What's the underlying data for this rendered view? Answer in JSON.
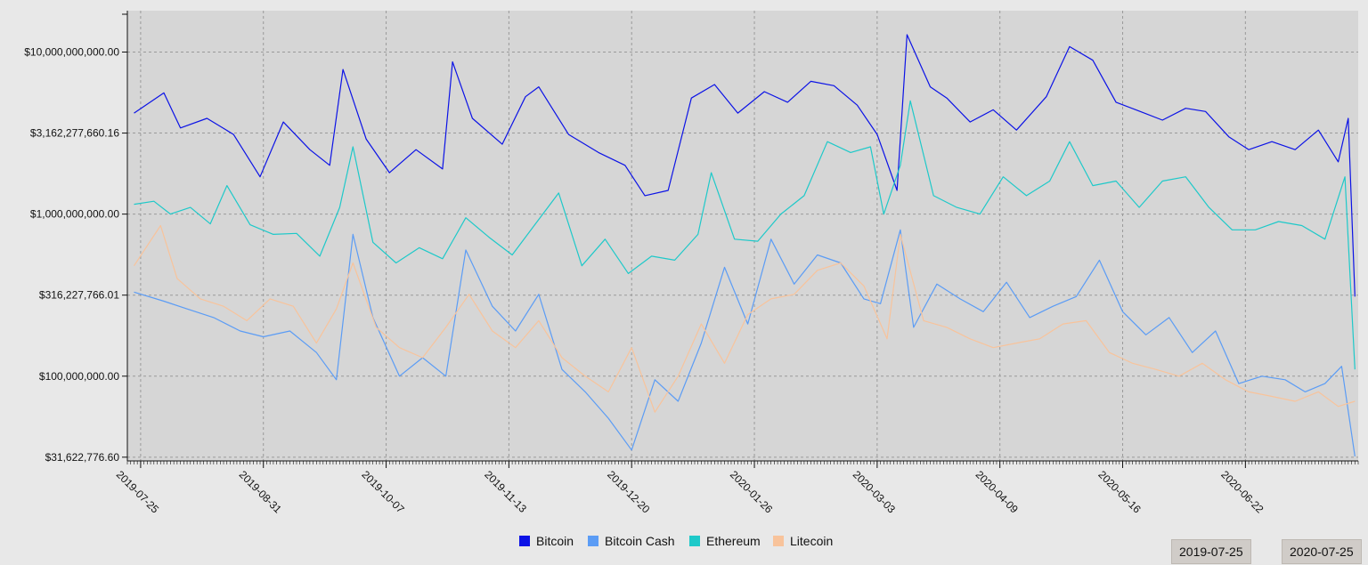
{
  "chart_data": {
    "type": "line",
    "y_scale": "log",
    "ylim": [
      30000000,
      18000000000
    ],
    "xlim": [
      "2019-07-21",
      "2020-07-26"
    ],
    "grid": true,
    "legend_position": "bottom-center",
    "y_ticks": [
      {
        "value": 10000000000,
        "label": "$10,000,000,000.00"
      },
      {
        "value": 3162277660.16,
        "label": "$3,162,277,660.16"
      },
      {
        "value": 1000000000,
        "label": "$1,000,000,000.00"
      },
      {
        "value": 316227766.01,
        "label": "$316,227,766.01"
      },
      {
        "value": 100000000,
        "label": "$100,000,000.00"
      },
      {
        "value": 31622776.6,
        "label": "$31,622,776.60"
      }
    ],
    "x_ticks": [
      "2019-07-25",
      "2019-08-31",
      "2019-10-07",
      "2019-11-13",
      "2019-12-20",
      "2020-01-26",
      "2020-03-03",
      "2020-04-09",
      "2020-05-16",
      "2020-06-22"
    ],
    "series": [
      {
        "name": "Bitcoin",
        "color": "#0b12e6",
        "points": [
          [
            "2019-07-23",
            4200000000
          ],
          [
            "2019-08-01",
            5600000000
          ],
          [
            "2019-08-06",
            3400000000
          ],
          [
            "2019-08-14",
            3900000000
          ],
          [
            "2019-08-22",
            3100000000
          ],
          [
            "2019-08-30",
            1700000000
          ],
          [
            "2019-09-06",
            3700000000
          ],
          [
            "2019-09-14",
            2500000000
          ],
          [
            "2019-09-20",
            2000000000
          ],
          [
            "2019-09-24",
            7800000000
          ],
          [
            "2019-10-01",
            2900000000
          ],
          [
            "2019-10-08",
            1800000000
          ],
          [
            "2019-10-16",
            2500000000
          ],
          [
            "2019-10-24",
            1900000000
          ],
          [
            "2019-10-27",
            8700000000
          ],
          [
            "2019-11-02",
            3900000000
          ],
          [
            "2019-11-11",
            2700000000
          ],
          [
            "2019-11-18",
            5300000000
          ],
          [
            "2019-11-22",
            6100000000
          ],
          [
            "2019-12-01",
            3100000000
          ],
          [
            "2019-12-10",
            2400000000
          ],
          [
            "2019-12-18",
            2000000000
          ],
          [
            "2019-12-24",
            1300000000
          ],
          [
            "2019-12-31",
            1400000000
          ],
          [
            "2020-01-07",
            5200000000
          ],
          [
            "2020-01-14",
            6300000000
          ],
          [
            "2020-01-21",
            4200000000
          ],
          [
            "2020-01-29",
            5700000000
          ],
          [
            "2020-02-05",
            4900000000
          ],
          [
            "2020-02-12",
            6600000000
          ],
          [
            "2020-02-19",
            6200000000
          ],
          [
            "2020-02-26",
            4700000000
          ],
          [
            "2020-03-03",
            3100000000
          ],
          [
            "2020-03-09",
            1400000000
          ],
          [
            "2020-03-12",
            12800000000
          ],
          [
            "2020-03-19",
            6100000000
          ],
          [
            "2020-03-24",
            5200000000
          ],
          [
            "2020-03-31",
            3700000000
          ],
          [
            "2020-04-07",
            4400000000
          ],
          [
            "2020-04-14",
            3300000000
          ],
          [
            "2020-04-23",
            5300000000
          ],
          [
            "2020-04-30",
            10800000000
          ],
          [
            "2020-05-07",
            8900000000
          ],
          [
            "2020-05-14",
            4900000000
          ],
          [
            "2020-05-20",
            4400000000
          ],
          [
            "2020-05-28",
            3800000000
          ],
          [
            "2020-06-04",
            4500000000
          ],
          [
            "2020-06-10",
            4300000000
          ],
          [
            "2020-06-17",
            3000000000
          ],
          [
            "2020-06-23",
            2500000000
          ],
          [
            "2020-06-30",
            2800000000
          ],
          [
            "2020-07-07",
            2500000000
          ],
          [
            "2020-07-14",
            3300000000
          ],
          [
            "2020-07-20",
            2100000000
          ],
          [
            "2020-07-23",
            3900000000
          ],
          [
            "2020-07-25",
            310000000
          ]
        ]
      },
      {
        "name": "Bitcoin Cash",
        "color": "#5b9cf5",
        "points": [
          [
            "2019-07-23",
            330000000
          ],
          [
            "2019-08-01",
            290000000
          ],
          [
            "2019-08-08",
            260000000
          ],
          [
            "2019-08-16",
            230000000
          ],
          [
            "2019-08-24",
            190000000
          ],
          [
            "2019-08-31",
            175000000
          ],
          [
            "2019-09-08",
            190000000
          ],
          [
            "2019-09-16",
            140000000
          ],
          [
            "2019-09-22",
            95000000
          ],
          [
            "2019-09-27",
            750000000
          ],
          [
            "2019-10-03",
            230000000
          ],
          [
            "2019-10-11",
            100000000
          ],
          [
            "2019-10-18",
            130000000
          ],
          [
            "2019-10-25",
            100000000
          ],
          [
            "2019-10-31",
            600000000
          ],
          [
            "2019-11-08",
            270000000
          ],
          [
            "2019-11-15",
            190000000
          ],
          [
            "2019-11-22",
            320000000
          ],
          [
            "2019-11-29",
            110000000
          ],
          [
            "2019-12-06",
            80000000
          ],
          [
            "2019-12-13",
            55000000
          ],
          [
            "2019-12-20",
            35000000
          ],
          [
            "2019-12-27",
            95000000
          ],
          [
            "2020-01-03",
            70000000
          ],
          [
            "2020-01-10",
            160000000
          ],
          [
            "2020-01-17",
            470000000
          ],
          [
            "2020-01-24",
            210000000
          ],
          [
            "2020-01-31",
            700000000
          ],
          [
            "2020-02-07",
            370000000
          ],
          [
            "2020-02-14",
            560000000
          ],
          [
            "2020-02-21",
            500000000
          ],
          [
            "2020-02-28",
            300000000
          ],
          [
            "2020-03-04",
            280000000
          ],
          [
            "2020-03-10",
            800000000
          ],
          [
            "2020-03-14",
            200000000
          ],
          [
            "2020-03-21",
            370000000
          ],
          [
            "2020-03-28",
            300000000
          ],
          [
            "2020-04-04",
            250000000
          ],
          [
            "2020-04-11",
            380000000
          ],
          [
            "2020-04-18",
            230000000
          ],
          [
            "2020-04-25",
            270000000
          ],
          [
            "2020-05-02",
            310000000
          ],
          [
            "2020-05-09",
            520000000
          ],
          [
            "2020-05-16",
            250000000
          ],
          [
            "2020-05-23",
            180000000
          ],
          [
            "2020-05-30",
            230000000
          ],
          [
            "2020-06-06",
            140000000
          ],
          [
            "2020-06-13",
            190000000
          ],
          [
            "2020-06-20",
            90000000
          ],
          [
            "2020-06-27",
            100000000
          ],
          [
            "2020-07-04",
            95000000
          ],
          [
            "2020-07-10",
            80000000
          ],
          [
            "2020-07-16",
            90000000
          ],
          [
            "2020-07-21",
            115000000
          ],
          [
            "2020-07-25",
            32000000
          ]
        ]
      },
      {
        "name": "Ethereum",
        "color": "#1ec9c9",
        "points": [
          [
            "2019-07-23",
            1150000000
          ],
          [
            "2019-07-29",
            1200000000
          ],
          [
            "2019-08-03",
            1000000000
          ],
          [
            "2019-08-09",
            1100000000
          ],
          [
            "2019-08-15",
            870000000
          ],
          [
            "2019-08-20",
            1500000000
          ],
          [
            "2019-08-27",
            860000000
          ],
          [
            "2019-09-03",
            750000000
          ],
          [
            "2019-09-10",
            760000000
          ],
          [
            "2019-09-17",
            550000000
          ],
          [
            "2019-09-23",
            1100000000
          ],
          [
            "2019-09-27",
            2600000000
          ],
          [
            "2019-10-03",
            670000000
          ],
          [
            "2019-10-10",
            500000000
          ],
          [
            "2019-10-17",
            620000000
          ],
          [
            "2019-10-24",
            530000000
          ],
          [
            "2019-10-31",
            950000000
          ],
          [
            "2019-11-07",
            720000000
          ],
          [
            "2019-11-14",
            560000000
          ],
          [
            "2019-11-21",
            870000000
          ],
          [
            "2019-11-28",
            1350000000
          ],
          [
            "2019-12-05",
            480000000
          ],
          [
            "2019-12-12",
            700000000
          ],
          [
            "2019-12-19",
            430000000
          ],
          [
            "2019-12-26",
            550000000
          ],
          [
            "2020-01-02",
            520000000
          ],
          [
            "2020-01-09",
            750000000
          ],
          [
            "2020-01-13",
            1800000000
          ],
          [
            "2020-01-20",
            700000000
          ],
          [
            "2020-01-27",
            680000000
          ],
          [
            "2020-02-03",
            1000000000
          ],
          [
            "2020-02-10",
            1300000000
          ],
          [
            "2020-02-17",
            2800000000
          ],
          [
            "2020-02-24",
            2400000000
          ],
          [
            "2020-03-01",
            2600000000
          ],
          [
            "2020-03-05",
            1000000000
          ],
          [
            "2020-03-10",
            2000000000
          ],
          [
            "2020-03-13",
            5000000000
          ],
          [
            "2020-03-20",
            1300000000
          ],
          [
            "2020-03-27",
            1100000000
          ],
          [
            "2020-04-03",
            1000000000
          ],
          [
            "2020-04-10",
            1700000000
          ],
          [
            "2020-04-17",
            1300000000
          ],
          [
            "2020-04-24",
            1600000000
          ],
          [
            "2020-04-30",
            2800000000
          ],
          [
            "2020-05-07",
            1500000000
          ],
          [
            "2020-05-14",
            1600000000
          ],
          [
            "2020-05-21",
            1100000000
          ],
          [
            "2020-05-28",
            1600000000
          ],
          [
            "2020-06-04",
            1700000000
          ],
          [
            "2020-06-11",
            1100000000
          ],
          [
            "2020-06-18",
            800000000
          ],
          [
            "2020-06-25",
            800000000
          ],
          [
            "2020-07-02",
            900000000
          ],
          [
            "2020-07-09",
            850000000
          ],
          [
            "2020-07-16",
            700000000
          ],
          [
            "2020-07-22",
            1700000000
          ],
          [
            "2020-07-25",
            110000000
          ]
        ]
      },
      {
        "name": "Litecoin",
        "color": "#f8c39b",
        "points": [
          [
            "2019-07-23",
            480000000
          ],
          [
            "2019-07-31",
            850000000
          ],
          [
            "2019-08-05",
            400000000
          ],
          [
            "2019-08-12",
            300000000
          ],
          [
            "2019-08-19",
            270000000
          ],
          [
            "2019-08-26",
            220000000
          ],
          [
            "2019-09-02",
            300000000
          ],
          [
            "2019-09-09",
            270000000
          ],
          [
            "2019-09-16",
            160000000
          ],
          [
            "2019-09-22",
            260000000
          ],
          [
            "2019-09-27",
            500000000
          ],
          [
            "2019-10-04",
            200000000
          ],
          [
            "2019-10-11",
            150000000
          ],
          [
            "2019-10-18",
            130000000
          ],
          [
            "2019-10-25",
            200000000
          ],
          [
            "2019-11-01",
            320000000
          ],
          [
            "2019-11-08",
            190000000
          ],
          [
            "2019-11-15",
            150000000
          ],
          [
            "2019-11-22",
            220000000
          ],
          [
            "2019-11-29",
            130000000
          ],
          [
            "2019-12-06",
            100000000
          ],
          [
            "2019-12-13",
            80000000
          ],
          [
            "2019-12-20",
            150000000
          ],
          [
            "2019-12-27",
            60000000
          ],
          [
            "2020-01-03",
            100000000
          ],
          [
            "2020-01-10",
            210000000
          ],
          [
            "2020-01-17",
            120000000
          ],
          [
            "2020-01-24",
            240000000
          ],
          [
            "2020-01-31",
            300000000
          ],
          [
            "2020-02-07",
            320000000
          ],
          [
            "2020-02-14",
            450000000
          ],
          [
            "2020-02-21",
            500000000
          ],
          [
            "2020-02-28",
            360000000
          ],
          [
            "2020-03-06",
            170000000
          ],
          [
            "2020-03-10",
            750000000
          ],
          [
            "2020-03-17",
            220000000
          ],
          [
            "2020-03-24",
            200000000
          ],
          [
            "2020-03-31",
            170000000
          ],
          [
            "2020-04-07",
            150000000
          ],
          [
            "2020-04-14",
            160000000
          ],
          [
            "2020-04-21",
            170000000
          ],
          [
            "2020-04-28",
            210000000
          ],
          [
            "2020-05-05",
            220000000
          ],
          [
            "2020-05-12",
            140000000
          ],
          [
            "2020-05-19",
            120000000
          ],
          [
            "2020-05-26",
            110000000
          ],
          [
            "2020-06-02",
            100000000
          ],
          [
            "2020-06-09",
            120000000
          ],
          [
            "2020-06-16",
            95000000
          ],
          [
            "2020-06-23",
            80000000
          ],
          [
            "2020-06-30",
            75000000
          ],
          [
            "2020-07-07",
            70000000
          ],
          [
            "2020-07-14",
            80000000
          ],
          [
            "2020-07-20",
            65000000
          ],
          [
            "2020-07-25",
            70000000
          ]
        ]
      }
    ]
  },
  "range_selector": {
    "start_label": "2019-07-25",
    "end_label": "2020-07-25"
  }
}
